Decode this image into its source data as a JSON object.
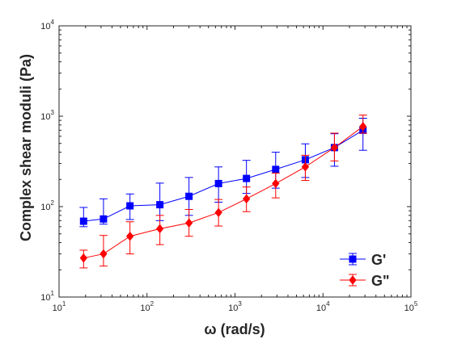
{
  "chart_data": {
    "type": "line",
    "title": "",
    "xlabel": "ω (rad/s)",
    "ylabel": "Complex shear moduli (Pa)",
    "xscale": "log",
    "yscale": "log",
    "xlim": [
      10,
      100000
    ],
    "ylim": [
      10,
      10000
    ],
    "x_ticks": [
      {
        "base": "10",
        "exp": "1"
      },
      {
        "base": "10",
        "exp": "2"
      },
      {
        "base": "10",
        "exp": "3"
      },
      {
        "base": "10",
        "exp": "4"
      },
      {
        "base": "10",
        "exp": "5"
      }
    ],
    "y_ticks": [
      {
        "base": "10",
        "exp": "1"
      },
      {
        "base": "10",
        "exp": "2"
      },
      {
        "base": "10",
        "exp": "3"
      },
      {
        "base": "10",
        "exp": "4"
      }
    ],
    "grid": false,
    "legend_position": "bottom-right",
    "series": [
      {
        "name": "G'",
        "color": "#0000ff",
        "marker": "square",
        "x": [
          19,
          32,
          64,
          140,
          300,
          650,
          1350,
          2900,
          6300,
          13500,
          28500
        ],
        "y": [
          69,
          73,
          102,
          105,
          130,
          180,
          205,
          258,
          330,
          450,
          700
        ],
        "err_low": [
          60,
          64,
          72,
          70,
          80,
          112,
          140,
          160,
          210,
          280,
          420
        ],
        "err_high": [
          98,
          122,
          138,
          182,
          210,
          275,
          325,
          400,
          495,
          640,
          950
        ]
      },
      {
        "name": "G\"",
        "color": "#ff0000",
        "marker": "diamond",
        "x": [
          19,
          32,
          64,
          140,
          300,
          650,
          1350,
          2900,
          6300,
          13500,
          28500
        ],
        "y": [
          27,
          30,
          47,
          57,
          66,
          86,
          122,
          180,
          275,
          450,
          770
        ],
        "err_low": [
          21,
          22,
          30,
          38,
          47,
          61,
          88,
          125,
          195,
          320,
          650
        ],
        "err_high": [
          33,
          48,
          68,
          80,
          93,
          120,
          165,
          235,
          370,
          650,
          1030
        ]
      }
    ]
  }
}
